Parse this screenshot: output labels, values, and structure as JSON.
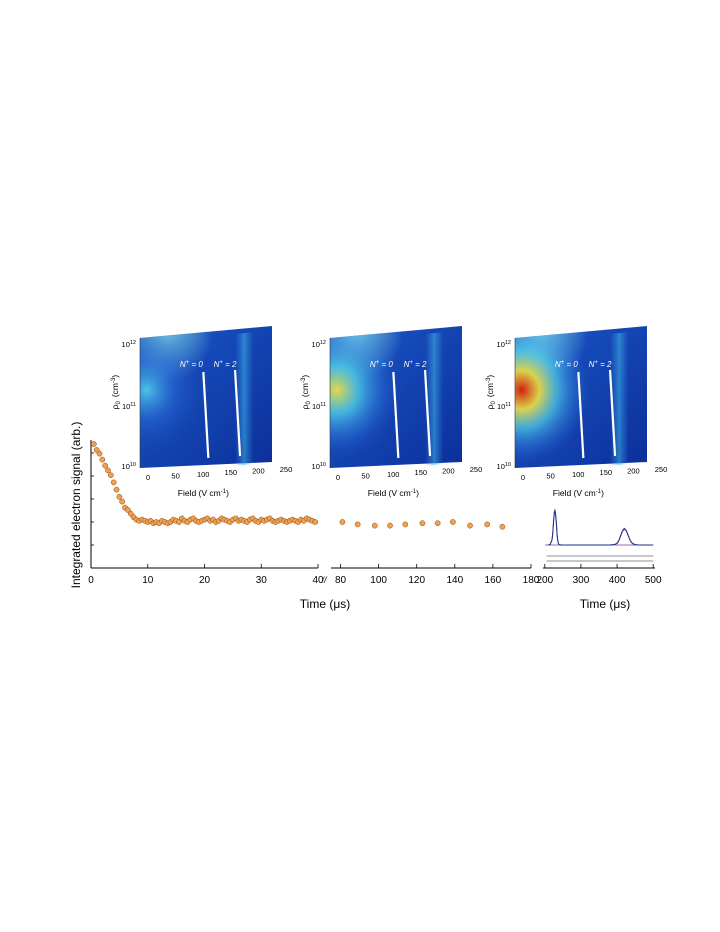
{
  "figure": {
    "y_axis_label": "Integrated electron signal (arb.)",
    "x_axis_label_main": "Time (μs)",
    "x_axis_label_right": "Time (μs)",
    "axis_break_symbol": "//"
  },
  "chart_data": [
    {
      "type": "scatter",
      "panel": "decay-left",
      "xlim": [
        0,
        40
      ],
      "x_ticks": [
        0,
        10,
        20,
        30,
        40
      ],
      "x": [
        0.5,
        1.0,
        1.5,
        2.0,
        2.5,
        3.0,
        3.5,
        4.0,
        4.5,
        5.0,
        5.5,
        6.0,
        6.5,
        7.0,
        7.5,
        8.0,
        8.5,
        9.0,
        9.5,
        10,
        10.5,
        11,
        11.5,
        12,
        12.5,
        13,
        13.5,
        14,
        14.5,
        15,
        15.5,
        16,
        16.5,
        17,
        17.5,
        18,
        18.5,
        19,
        19.5,
        20,
        20.5,
        21,
        21.5,
        22,
        22.5,
        23,
        23.5,
        24,
        24.5,
        25,
        25.5,
        26,
        26.5,
        27,
        27.5,
        28,
        28.5,
        29,
        29.5,
        30,
        30.5,
        31,
        31.5,
        32,
        32.5,
        33,
        33.5,
        34,
        34.5,
        35,
        35.5,
        36,
        36.5,
        37,
        37.5,
        38,
        38.5,
        39,
        39.5
      ],
      "y": [
        1.0,
        0.95,
        0.92,
        0.87,
        0.82,
        0.78,
        0.74,
        0.68,
        0.62,
        0.56,
        0.52,
        0.47,
        0.45,
        0.42,
        0.39,
        0.37,
        0.36,
        0.37,
        0.36,
        0.35,
        0.36,
        0.34,
        0.35,
        0.34,
        0.36,
        0.35,
        0.34,
        0.35,
        0.37,
        0.36,
        0.35,
        0.38,
        0.36,
        0.35,
        0.37,
        0.38,
        0.36,
        0.35,
        0.36,
        0.37,
        0.38,
        0.36,
        0.37,
        0.35,
        0.36,
        0.38,
        0.37,
        0.36,
        0.35,
        0.37,
        0.38,
        0.36,
        0.37,
        0.36,
        0.35,
        0.37,
        0.38,
        0.36,
        0.35,
        0.37,
        0.36,
        0.37,
        0.38,
        0.36,
        0.35,
        0.36,
        0.37,
        0.36,
        0.35,
        0.36,
        0.37,
        0.36,
        0.35,
        0.37,
        0.36,
        0.38,
        0.37,
        0.36,
        0.35
      ]
    },
    {
      "type": "scatter",
      "panel": "decay-middle",
      "xlim": [
        75,
        180
      ],
      "x_ticks": [
        80,
        100,
        120,
        140,
        160,
        180
      ],
      "x": [
        81,
        89,
        98,
        106,
        114,
        123,
        131,
        139,
        148,
        157,
        165
      ],
      "y": [
        0.35,
        0.33,
        0.32,
        0.32,
        0.33,
        0.34,
        0.34,
        0.35,
        0.32,
        0.33,
        0.31
      ]
    },
    {
      "type": "line",
      "panel": "trace-right",
      "xlim": [
        195,
        505
      ],
      "x_ticks": [
        200,
        300,
        400,
        500
      ],
      "series": [
        {
          "color": "#9c5fc0",
          "x": [
            210,
            215,
            220,
            222,
            224,
            226,
            228,
            230,
            232,
            234,
            236,
            238,
            240,
            245,
            250,
            300,
            350,
            380,
            390,
            395,
            400,
            405,
            410,
            415,
            420,
            425,
            430,
            435,
            440,
            445,
            450,
            460,
            480,
            500
          ],
          "y": [
            0.0,
            0.02,
            0.15,
            0.35,
            0.65,
            0.9,
            1.0,
            0.88,
            0.6,
            0.3,
            0.12,
            0.04,
            0.01,
            0.0,
            0.0,
            0.0,
            0.0,
            0.0,
            0.01,
            0.02,
            0.05,
            0.12,
            0.25,
            0.38,
            0.44,
            0.4,
            0.28,
            0.15,
            0.07,
            0.03,
            0.01,
            0.0,
            0.0,
            0.0
          ]
        },
        {
          "color": "#1f2f8a",
          "x": [
            210,
            215,
            220,
            222,
            224,
            226,
            228,
            230,
            232,
            234,
            236,
            238,
            240,
            245,
            250,
            300,
            350,
            380,
            390,
            395,
            400,
            405,
            410,
            415,
            420,
            425,
            430,
            435,
            440,
            445,
            450,
            460,
            480,
            500
          ],
          "y": [
            0.0,
            0.02,
            0.14,
            0.33,
            0.62,
            0.86,
            0.95,
            0.84,
            0.58,
            0.28,
            0.11,
            0.03,
            0.01,
            0.0,
            0.0,
            0.0,
            0.0,
            0.0,
            0.01,
            0.02,
            0.05,
            0.13,
            0.27,
            0.4,
            0.46,
            0.41,
            0.29,
            0.16,
            0.07,
            0.03,
            0.01,
            0.0,
            0.0,
            0.0
          ]
        }
      ]
    },
    {
      "type": "heatmap",
      "panel": "map-1",
      "xlabel": "Field (V cm",
      "xlabel_sup": "-1",
      "xlabel_end": ")",
      "ylabel": "ρ",
      "ylabel_sub": "0",
      "ylabel_unit": "(cm",
      "ylabel_unit_sup": "-3",
      "ylabel_unit_end": ")",
      "x_ticks": [
        "0",
        "50",
        "100",
        "150",
        "200",
        "250"
      ],
      "y_ticks": [
        {
          "base": "10",
          "exp": "10"
        },
        {
          "base": "10",
          "exp": "11"
        },
        {
          "base": "10",
          "exp": "12"
        }
      ],
      "annotations": [
        {
          "prefix": "N",
          "sup": "+",
          "suffix": " = 0"
        },
        {
          "prefix": "N",
          "sup": "+",
          "suffix": " = 2"
        }
      ],
      "intensity": "low"
    },
    {
      "type": "heatmap",
      "panel": "map-2",
      "xlabel": "Field (V cm",
      "xlabel_sup": "-1",
      "xlabel_end": ")",
      "ylabel": "ρ",
      "ylabel_sub": "0",
      "ylabel_unit": "(cm",
      "ylabel_unit_sup": "-3",
      "ylabel_unit_end": ")",
      "x_ticks": [
        "0",
        "50",
        "100",
        "150",
        "200",
        "250"
      ],
      "y_ticks": [
        {
          "base": "10",
          "exp": "10"
        },
        {
          "base": "10",
          "exp": "11"
        },
        {
          "base": "10",
          "exp": "12"
        }
      ],
      "annotations": [
        {
          "prefix": "N",
          "sup": "+",
          "suffix": " = 0"
        },
        {
          "prefix": "N",
          "sup": "+",
          "suffix": " = 2"
        }
      ],
      "intensity": "medium"
    },
    {
      "type": "heatmap",
      "panel": "map-3",
      "xlabel": "Field (V cm",
      "xlabel_sup": "-1",
      "xlabel_end": ")",
      "ylabel": "ρ",
      "ylabel_sub": "0",
      "ylabel_unit": "(cm",
      "ylabel_unit_sup": "-3",
      "ylabel_unit_end": ")",
      "x_ticks": [
        "0",
        "50",
        "100",
        "150",
        "200",
        "250"
      ],
      "y_ticks": [
        {
          "base": "10",
          "exp": "10"
        },
        {
          "base": "10",
          "exp": "11"
        },
        {
          "base": "10",
          "exp": "12"
        }
      ],
      "annotations": [
        {
          "prefix": "N",
          "sup": "+",
          "suffix": " = 0"
        },
        {
          "prefix": "N",
          "sup": "+",
          "suffix": " = 2"
        }
      ],
      "intensity": "high"
    }
  ],
  "colors": {
    "marker_fill": "#f0a050",
    "marker_stroke": "#8a4a10",
    "axis": "#000000",
    "map_dark": "#0a2a8c",
    "map_mid": "#2a6ad8",
    "map_cyan": "#50d0e8",
    "map_yellow": "#f0e040",
    "map_red": "#d02010",
    "ridge_line": "#ffffff"
  }
}
